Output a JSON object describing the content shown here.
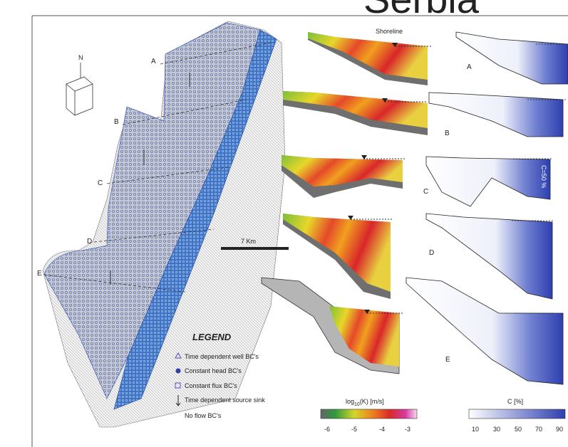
{
  "title": "Serbia",
  "map": {
    "north": "N",
    "section_labels": [
      "A",
      "B",
      "C",
      "D",
      "E"
    ],
    "scale": "7 Km"
  },
  "legend": {
    "title": "LEGEND",
    "items": [
      "Time dependent well BC's",
      "Constant head BC's",
      "Constant flux BC's",
      "Time dependent source sink",
      "No flow BC's"
    ]
  },
  "conductivity": {
    "shoreline": "Shoreline",
    "colorbar": {
      "label_base": "log",
      "label_sub": "10",
      "label_rest": "(K) [m/s]",
      "ticks": [
        "-6",
        "-5",
        "-4",
        "-3"
      ]
    }
  },
  "concentration": {
    "section_labels": [
      "A",
      "B",
      "C",
      "D",
      "E"
    ],
    "contour": "C=50 %",
    "colorbar": {
      "label": "C [%]",
      "ticks": [
        "10",
        "30",
        "50",
        "70",
        "90"
      ]
    }
  }
}
